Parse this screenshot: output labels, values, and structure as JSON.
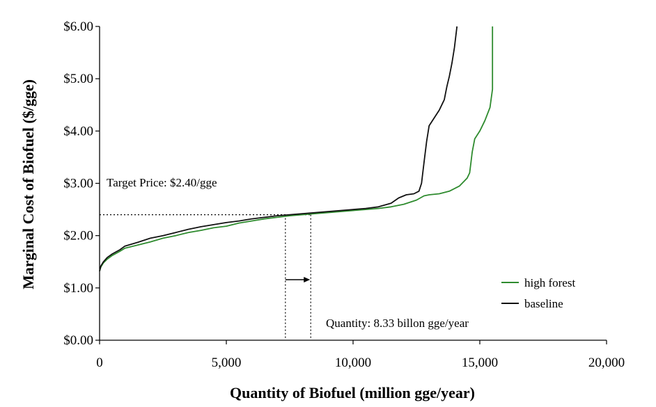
{
  "chart_data": {
    "type": "line",
    "title": "",
    "xlabel": "Quantity of Biofuel (million gge/year)",
    "ylabel": "Marginal Cost of Biofuel ($/gge)",
    "xlim": [
      0,
      20000
    ],
    "ylim": [
      0,
      6
    ],
    "x_ticks": [
      0,
      5000,
      10000,
      15000,
      20000
    ],
    "x_tick_labels": [
      "0",
      "5,000",
      "10,000",
      "15,000",
      "20,000"
    ],
    "y_ticks": [
      0,
      1,
      2,
      3,
      4,
      5,
      6
    ],
    "y_tick_labels": [
      "$0.00",
      "$1.00",
      "$2.00",
      "$3.00",
      "$4.00",
      "$5.00",
      "$6.00"
    ],
    "grid": false,
    "legend_position": "bottom-right",
    "series": [
      {
        "name": "high forest",
        "color": "#2e8b2e",
        "x": [
          0,
          50,
          150,
          300,
          500,
          800,
          1000,
          1500,
          2000,
          2500,
          3000,
          3500,
          4000,
          4500,
          5000,
          5500,
          6000,
          6500,
          7000,
          7500,
          8000,
          8500,
          9000,
          9500,
          10000,
          10500,
          11000,
          11500,
          12000,
          12500,
          12800,
          13000,
          13400,
          13800,
          14200,
          14400,
          14500,
          14600,
          14650,
          14700,
          14800,
          15000,
          15200,
          15400,
          15500,
          15500
        ],
        "y": [
          1.32,
          1.4,
          1.48,
          1.55,
          1.62,
          1.7,
          1.76,
          1.82,
          1.88,
          1.95,
          2.0,
          2.06,
          2.1,
          2.15,
          2.18,
          2.24,
          2.28,
          2.32,
          2.35,
          2.38,
          2.4,
          2.42,
          2.44,
          2.46,
          2.48,
          2.5,
          2.52,
          2.55,
          2.6,
          2.68,
          2.76,
          2.78,
          2.8,
          2.85,
          2.95,
          3.05,
          3.1,
          3.2,
          3.4,
          3.6,
          3.85,
          4.0,
          4.2,
          4.45,
          4.8,
          6.0
        ]
      },
      {
        "name": "baseline",
        "color": "#111111",
        "x": [
          0,
          50,
          150,
          300,
          500,
          800,
          1000,
          1500,
          2000,
          2500,
          3000,
          3500,
          4000,
          4500,
          5000,
          5500,
          6000,
          6500,
          7000,
          7500,
          8000,
          8500,
          9000,
          9500,
          10000,
          10500,
          11000,
          11500,
          11800,
          12100,
          12400,
          12600,
          12700,
          12800,
          12900,
          13000,
          13200,
          13400,
          13600,
          13700,
          13800,
          13900,
          14000,
          14050,
          14100
        ],
        "y": [
          1.32,
          1.42,
          1.5,
          1.58,
          1.65,
          1.73,
          1.8,
          1.87,
          1.95,
          2.0,
          2.06,
          2.12,
          2.17,
          2.21,
          2.25,
          2.28,
          2.32,
          2.35,
          2.38,
          2.4,
          2.42,
          2.44,
          2.46,
          2.48,
          2.5,
          2.52,
          2.55,
          2.62,
          2.72,
          2.78,
          2.8,
          2.85,
          3.0,
          3.4,
          3.8,
          4.1,
          4.25,
          4.4,
          4.6,
          4.85,
          5.05,
          5.3,
          5.6,
          5.8,
          6.0
        ]
      }
    ],
    "annotations": {
      "target_price_label": "Target Price: $2.40/gge",
      "target_price_value": 2.4,
      "quantity_label": "Quantity: 8.33 billon gge/year",
      "quantity_from": 7330,
      "quantity_to": 8330
    }
  }
}
